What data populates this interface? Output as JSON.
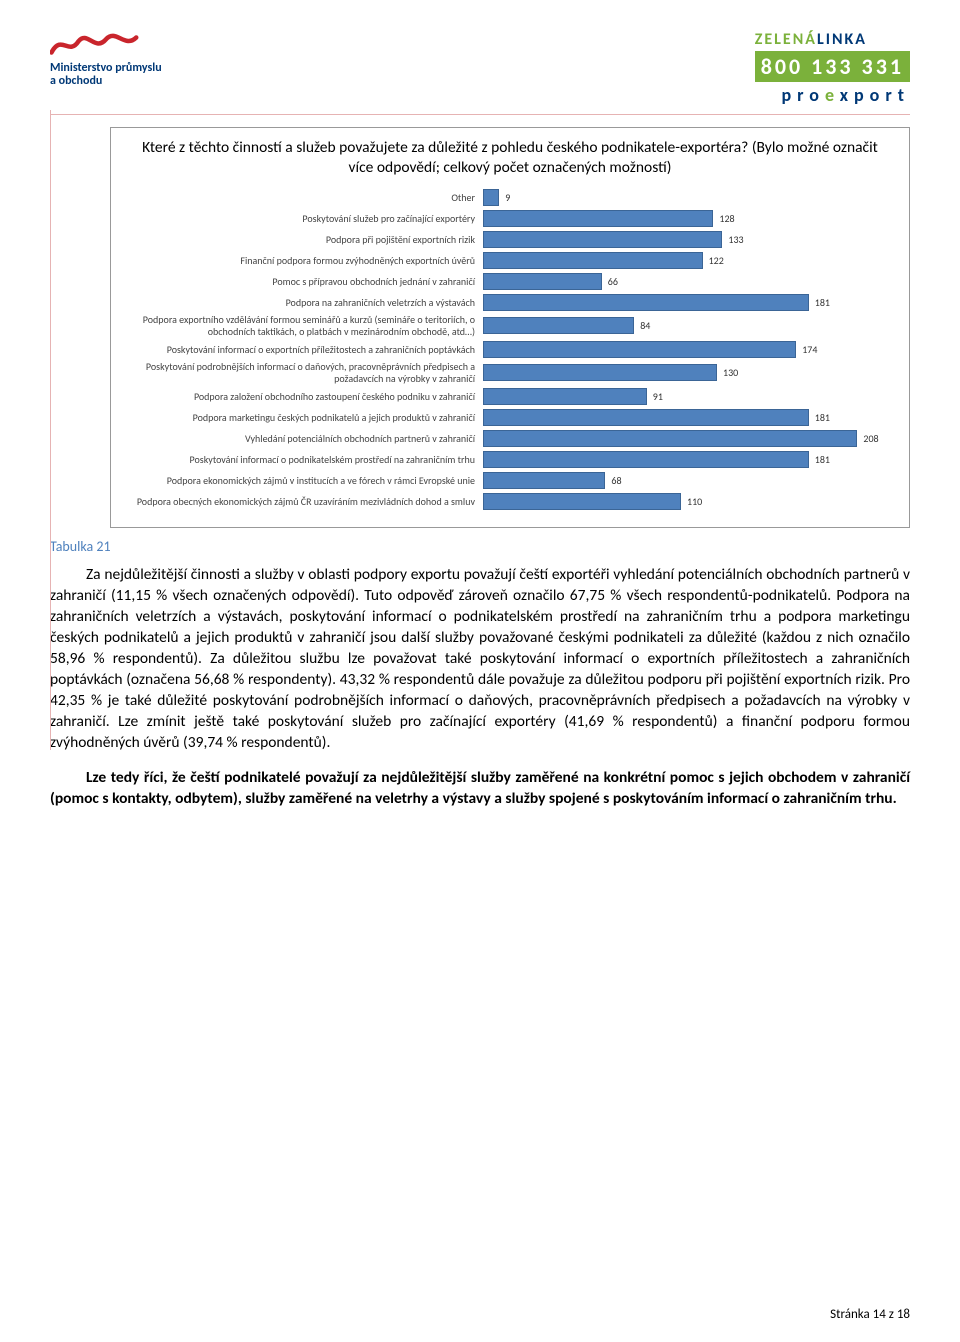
{
  "header": {
    "ministry_line1": "Ministerstvo průmyslu",
    "ministry_line2": "a obchodu",
    "zelena_green": "ZELENÁ",
    "zelena_blue": "LINKA",
    "phone": "800 133 331",
    "proexport_pre": "pro",
    "proexport_e": "e",
    "proexport_post": "xport"
  },
  "chart": {
    "type": "bar-horizontal",
    "title": "Které z těchto činností a služeb považujete za důležité z pohledu českého podnikatele-exportéra? (Bylo možné označit více odpovědí; celkový počet označených možností)",
    "xlim_max": 230,
    "bar_color": "#4f81bd",
    "bar_border": "#3b6596",
    "rows": [
      {
        "label": "Other",
        "value": 9
      },
      {
        "label": "Poskytování služeb pro začínající exportéry",
        "value": 128
      },
      {
        "label": "Podpora při pojištění exportních rizik",
        "value": 133
      },
      {
        "label": "Finanční podpora formou zvýhodněných exportních úvěrů",
        "value": 122
      },
      {
        "label": "Pomoc s přípravou obchodních jednání v zahraničí",
        "value": 66
      },
      {
        "label": "Podpora na zahraničních veletrzích a výstavách",
        "value": 181
      },
      {
        "label": "Podpora exportního vzdělávání formou seminářů a kurzů (semináře o teritoriích, o obchodních taktikách, o platbách v mezinárodním obchodě, atd…)",
        "value": 84
      },
      {
        "label": "Poskytování informací o exportních příležitostech a zahraničních poptávkách",
        "value": 174
      },
      {
        "label": "Poskytování podrobnějších informací o daňových, pracovněprávních předpisech a požadavcích na výrobky v zahraničí",
        "value": 130
      },
      {
        "label": "Podpora založení obchodního zastoupení českého podniku v zahraničí",
        "value": 91
      },
      {
        "label": "Podpora marketingu českých podnikatelů a jejich produktů v zahraničí",
        "value": 181
      },
      {
        "label": "Vyhledání potenciálních obchodních partnerů v zahraničí",
        "value": 208
      },
      {
        "label": "Poskytování informací o podnikatelském prostředí na zahraničním trhu",
        "value": 181
      },
      {
        "label": "Podpora ekonomických zájmů v institucích a ve fórech v rámci Evropské unie",
        "value": 68
      },
      {
        "label": "Podpora obecných ekonomických zájmů ČR uzavíráním mezivládních dohod a smluv",
        "value": 110
      }
    ]
  },
  "table_ref": "Tabulka 21",
  "para1": "Za nejdůležitější činnosti a služby v oblasti podpory exportu považují čeští exportéři vyhledání potenciálních obchodních partnerů v zahraničí (11,15 % všech označených odpovědí). Tuto odpověď zároveň označilo 67,75 % všech respondentů-podnikatelů. Podpora na zahraničních veletrzích a výstavách, poskytování informací o podnikatelském prostředí na zahraničním trhu a podpora marketingu českých podnikatelů a jejich produktů v zahraničí jsou další služby považované českými podnikateli za důležité (každou z nich označilo 58,96 % respondentů). Za důležitou službu lze považovat také poskytování informací o exportních příležitostech a zahraničních poptávkách (označena 56,68 % respondenty). 43,32 % respondentů dále považuje za důležitou podporu při pojištění exportních rizik. Pro 42,35 % je také důležité poskytování podrobnějších informací o daňových, pracovněprávních předpisech a požadavcích na výrobky v zahraničí. Lze zmínit ještě také poskytování služeb pro začínající exportéry (41,69 % respondentů) a finanční podporu formou zvýhodněných úvěrů (39,74 % respondentů).",
  "para2": "Lze tedy říci, že čeští podnikatelé považují za nejdůležitější služby zaměřené na konkrétní pomoc s jejich obchodem v zahraničí (pomoc s kontakty, odbytem), služby zaměřené na veletrhy a výstavy a služby spojené s poskytováním informací o zahraničním trhu.",
  "footer": "Stránka 14 z 18",
  "colors": {
    "brand_blue": "#003876",
    "brand_green": "#7bb13b",
    "rule_red": "#e6b3b3"
  }
}
